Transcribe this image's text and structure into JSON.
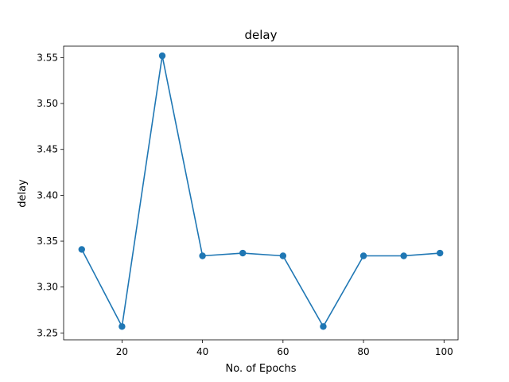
{
  "chart_data": {
    "type": "line",
    "title": "delay",
    "xlabel": "No. of Epochs",
    "ylabel": "delay",
    "xlim": [
      5.5,
      103.5
    ],
    "ylim": [
      3.2425,
      3.5625
    ],
    "x_ticks": [
      20,
      40,
      60,
      80,
      100
    ],
    "y_ticks": [
      3.25,
      3.3,
      3.35,
      3.4,
      3.45,
      3.5,
      3.55
    ],
    "x_tick_labels": [
      "20",
      "40",
      "60",
      "80",
      "100"
    ],
    "y_tick_labels": [
      "3.25",
      "3.30",
      "3.35",
      "3.40",
      "3.45",
      "3.50",
      "3.55"
    ],
    "grid": false,
    "series": [
      {
        "color": "#1f77b4",
        "marker": "circle",
        "x": [
          10,
          20,
          30,
          40,
          50,
          60,
          70,
          80,
          90,
          99
        ],
        "y": [
          3.341,
          3.257,
          3.552,
          3.334,
          3.337,
          3.334,
          3.257,
          3.334,
          3.334,
          3.337
        ]
      }
    ]
  }
}
